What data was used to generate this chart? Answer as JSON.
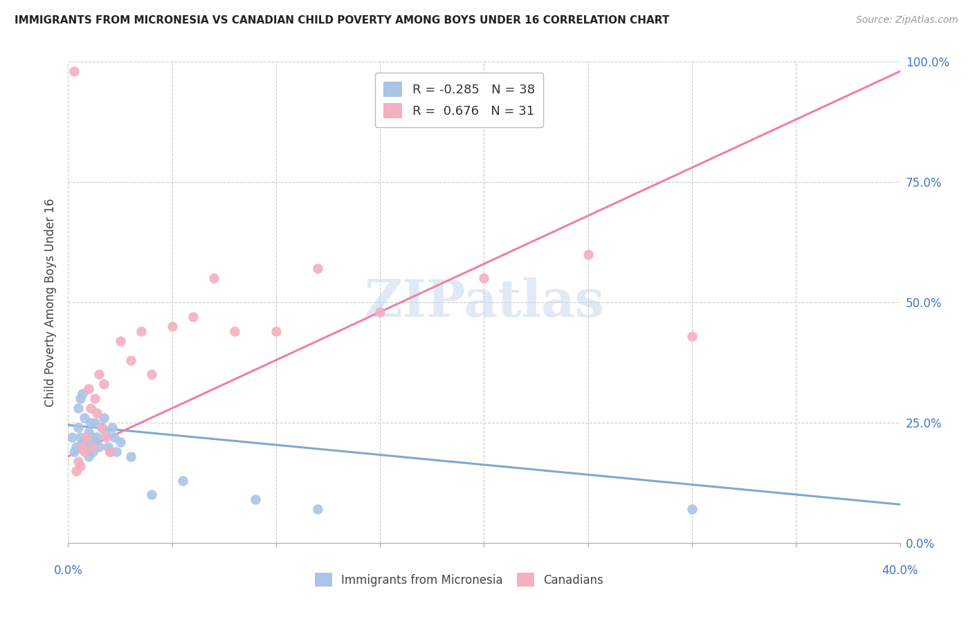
{
  "title": "IMMIGRANTS FROM MICRONESIA VS CANADIAN CHILD POVERTY AMONG BOYS UNDER 16 CORRELATION CHART",
  "source": "Source: ZipAtlas.com",
  "ylabel": "Child Poverty Among Boys Under 16",
  "ytick_labels": [
    "0.0%",
    "25.0%",
    "50.0%",
    "75.0%",
    "100.0%"
  ],
  "ytick_values": [
    0,
    25,
    50,
    75,
    100
  ],
  "legend_blue_r": "-0.285",
  "legend_blue_n": "38",
  "legend_pink_r": "0.676",
  "legend_pink_n": "31",
  "legend_label_blue": "Immigrants from Micronesia",
  "legend_label_pink": "Canadians",
  "blue_color": "#aac4e8",
  "pink_color": "#f4b0c0",
  "blue_line_color": "#7aaad0",
  "pink_line_color": "#f080a0",
  "xmin": 0,
  "xmax": 40,
  "ymin": 0,
  "ymax": 100,
  "blue_scatter_x": [
    0.2,
    0.3,
    0.4,
    0.5,
    0.5,
    0.6,
    0.6,
    0.7,
    0.7,
    0.8,
    0.8,
    0.9,
    0.9,
    1.0,
    1.0,
    1.1,
    1.1,
    1.2,
    1.2,
    1.3,
    1.3,
    1.4,
    1.5,
    1.6,
    1.7,
    1.8,
    1.9,
    2.0,
    2.1,
    2.2,
    2.3,
    2.5,
    3.0,
    4.0,
    5.5,
    9.0,
    12.0,
    30.0
  ],
  "blue_scatter_y": [
    22,
    19,
    20,
    24,
    28,
    22,
    30,
    21,
    31,
    20,
    26,
    22,
    19,
    23,
    18,
    25,
    21,
    22,
    19,
    21,
    25,
    22,
    20,
    24,
    26,
    23,
    20,
    19,
    24,
    22,
    19,
    21,
    18,
    10,
    13,
    9,
    7,
    7
  ],
  "pink_scatter_x": [
    0.3,
    0.5,
    0.6,
    0.7,
    0.8,
    0.9,
    1.0,
    1.1,
    1.2,
    1.3,
    1.4,
    1.5,
    1.6,
    1.7,
    1.8,
    2.0,
    2.5,
    3.0,
    3.5,
    4.0,
    5.0,
    6.0,
    7.0,
    8.0,
    10.0,
    12.0,
    15.0,
    20.0,
    25.0,
    30.0,
    0.4
  ],
  "pink_scatter_y": [
    98,
    17,
    16,
    20,
    19,
    22,
    32,
    28,
    20,
    30,
    27,
    35,
    24,
    33,
    22,
    19,
    42,
    38,
    44,
    35,
    45,
    47,
    55,
    44,
    44,
    57,
    48,
    55,
    60,
    43,
    15
  ],
  "blue_trendline_x": [
    0,
    40
  ],
  "blue_trendline_y": [
    24.5,
    8
  ],
  "pink_trendline_x": [
    0,
    40
  ],
  "pink_trendline_y": [
    18,
    98
  ]
}
